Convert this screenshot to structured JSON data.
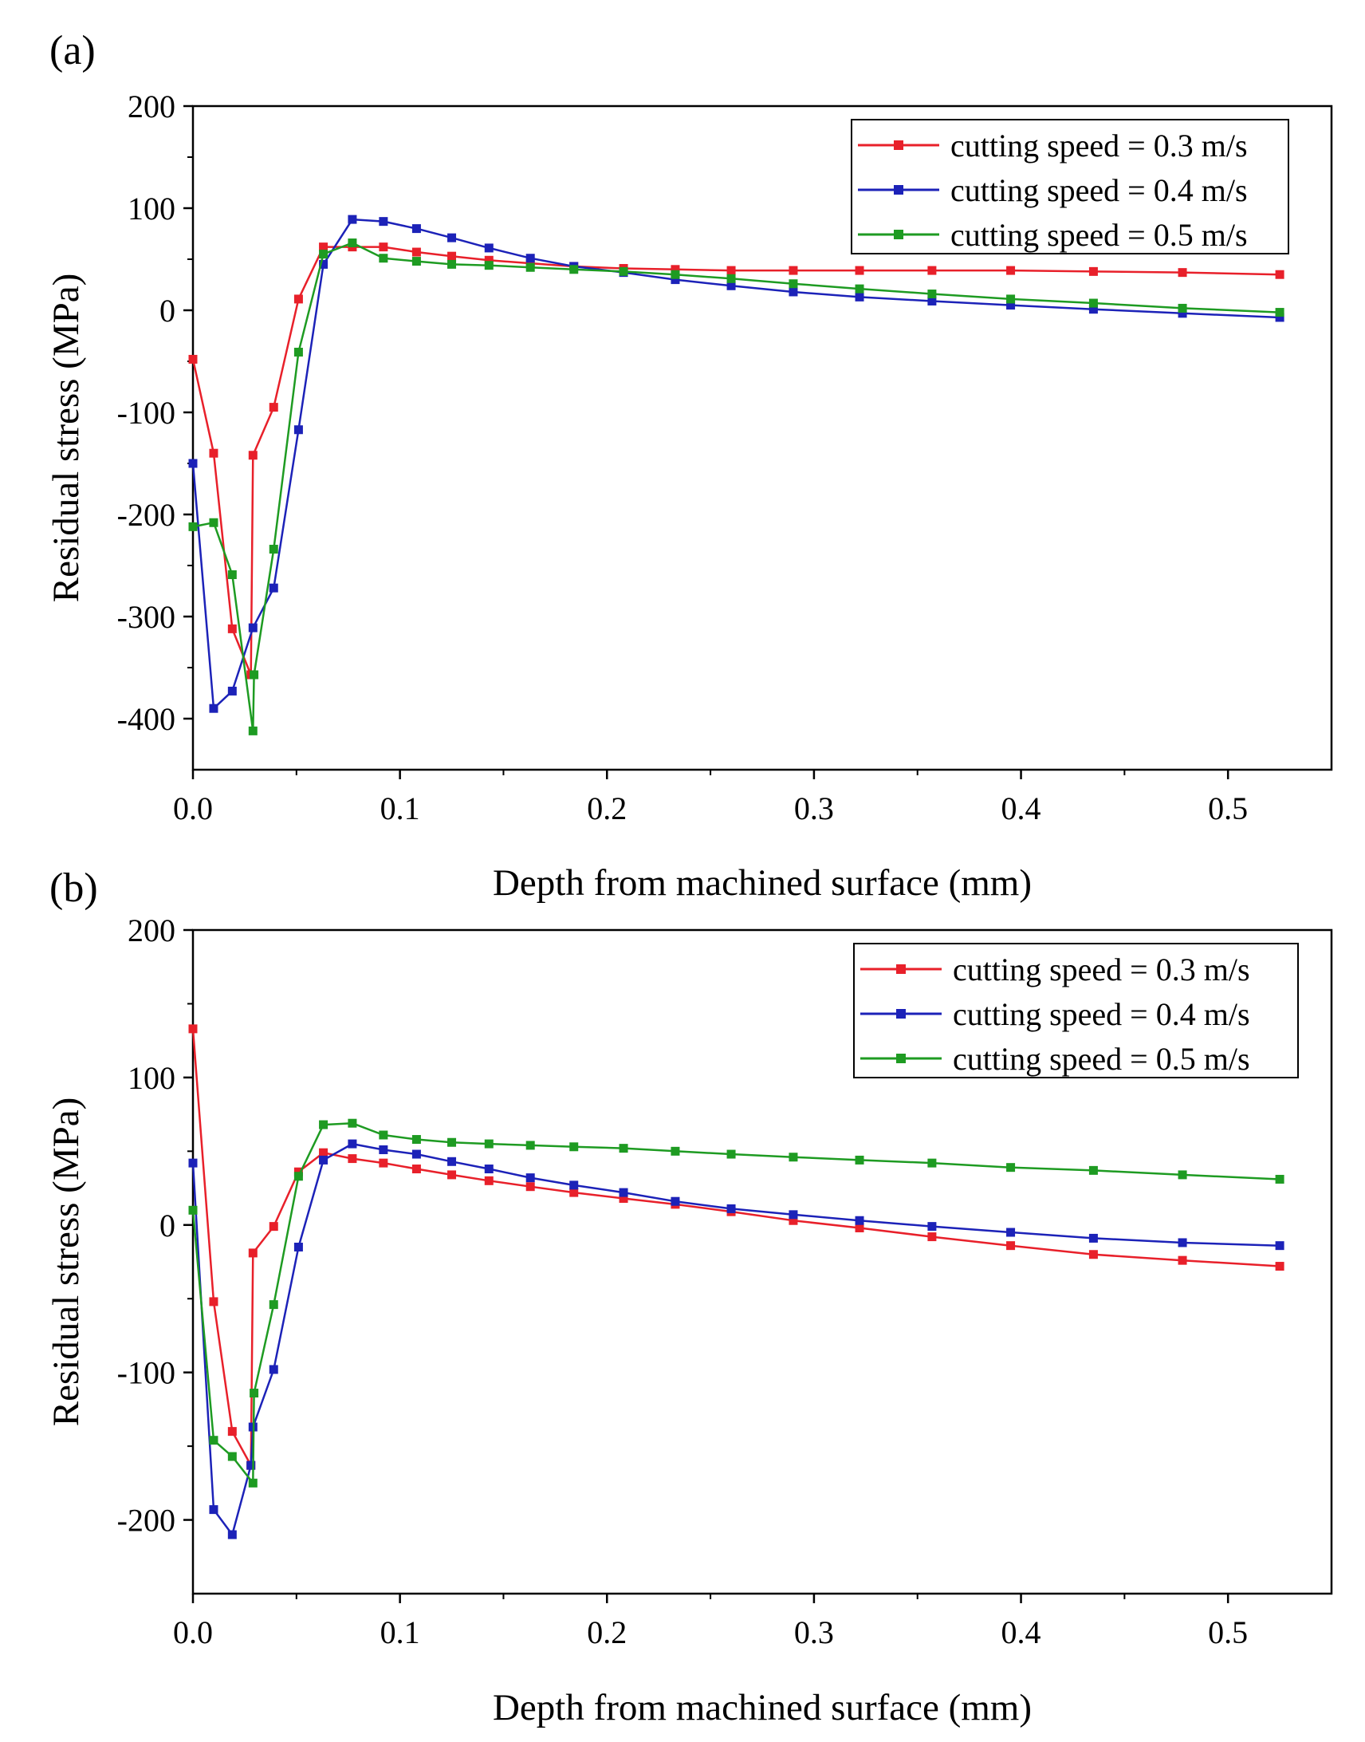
{
  "chart_data": [
    {
      "type": "line",
      "panel_label": "(a)",
      "xlabel": "Depth from machined surface (mm)",
      "ylabel": "Residual stress (MPa)",
      "xlim": [
        0,
        0.55
      ],
      "ylim": [
        -450,
        200
      ],
      "xticks": [
        0,
        0.1,
        0.2,
        0.3,
        0.4,
        0.5
      ],
      "xtick_labels": [
        "0.0",
        "0.1",
        "0.2",
        "0.3",
        "0.4",
        "0.5"
      ],
      "yticks": [
        -400,
        -300,
        -200,
        -100,
        0,
        100,
        200
      ],
      "ytick_labels": [
        "-400",
        "-300",
        "-200",
        "-100",
        "0",
        "100",
        "200"
      ],
      "legend_position": "top-right",
      "series": [
        {
          "name": "cutting speed = 0.3 m/s",
          "color": "#e8202a",
          "points": [
            [
              0,
              -48
            ],
            [
              0.01,
              -140
            ],
            [
              0.019,
              -312
            ],
            [
              0.028,
              -357
            ],
            [
              0.029,
              -142
            ],
            [
              0.039,
              -95
            ],
            [
              0.051,
              11
            ],
            [
              0.063,
              62
            ],
            [
              0.077,
              62
            ],
            [
              0.092,
              62
            ],
            [
              0.108,
              57
            ],
            [
              0.125,
              53
            ],
            [
              0.143,
              49
            ],
            [
              0.163,
              46
            ],
            [
              0.184,
              43
            ],
            [
              0.208,
              41
            ],
            [
              0.233,
              40
            ],
            [
              0.26,
              39
            ],
            [
              0.29,
              39
            ],
            [
              0.322,
              39
            ],
            [
              0.357,
              39
            ],
            [
              0.395,
              39
            ],
            [
              0.435,
              38
            ],
            [
              0.478,
              37
            ],
            [
              0.525,
              35
            ]
          ]
        },
        {
          "name": "cutting speed = 0.4 m/s",
          "color": "#1c22b8",
          "points": [
            [
              0,
              -150
            ],
            [
              0.01,
              -390
            ],
            [
              0.019,
              -373
            ],
            [
              0.029,
              -311
            ],
            [
              0.039,
              -272
            ],
            [
              0.051,
              -117
            ],
            [
              0.063,
              45
            ],
            [
              0.077,
              89
            ],
            [
              0.092,
              87
            ],
            [
              0.108,
              80
            ],
            [
              0.125,
              71
            ],
            [
              0.143,
              61
            ],
            [
              0.163,
              51
            ],
            [
              0.184,
              43
            ],
            [
              0.208,
              37
            ],
            [
              0.233,
              30
            ],
            [
              0.26,
              24
            ],
            [
              0.29,
              18
            ],
            [
              0.322,
              13
            ],
            [
              0.357,
              9
            ],
            [
              0.395,
              5
            ],
            [
              0.435,
              1
            ],
            [
              0.478,
              -3
            ],
            [
              0.525,
              -7
            ]
          ]
        },
        {
          "name": "cutting speed = 0.5 m/s",
          "color": "#1e9b22",
          "points": [
            [
              0,
              -212
            ],
            [
              0.01,
              -208
            ],
            [
              0.019,
              -259
            ],
            [
              0.029,
              -412
            ],
            [
              0.0295,
              -357
            ],
            [
              0.039,
              -234
            ],
            [
              0.051,
              -41
            ],
            [
              0.063,
              55
            ],
            [
              0.077,
              66
            ],
            [
              0.092,
              51
            ],
            [
              0.108,
              48
            ],
            [
              0.125,
              45
            ],
            [
              0.143,
              44
            ],
            [
              0.163,
              42
            ],
            [
              0.184,
              40
            ],
            [
              0.208,
              38
            ],
            [
              0.233,
              35
            ],
            [
              0.26,
              31
            ],
            [
              0.29,
              26
            ],
            [
              0.322,
              21
            ],
            [
              0.357,
              16
            ],
            [
              0.395,
              11
            ],
            [
              0.435,
              7
            ],
            [
              0.478,
              2
            ],
            [
              0.525,
              -2
            ]
          ]
        }
      ]
    },
    {
      "type": "line",
      "panel_label": "(b)",
      "xlabel": "Depth from machined surface (mm)",
      "ylabel": "Residual stress (MPa)",
      "xlim": [
        0,
        0.55
      ],
      "ylim": [
        -250,
        200
      ],
      "xticks": [
        0,
        0.1,
        0.2,
        0.3,
        0.4,
        0.5
      ],
      "xtick_labels": [
        "0.0",
        "0.1",
        "0.2",
        "0.3",
        "0.4",
        "0.5"
      ],
      "yticks": [
        -200,
        -100,
        0,
        100,
        200
      ],
      "ytick_labels": [
        "-200",
        "-100",
        "0",
        "100",
        "200"
      ],
      "legend_position": "top-right",
      "series": [
        {
          "name": "cutting speed = 0.3 m/s",
          "color": "#e8202a",
          "points": [
            [
              0,
              133
            ],
            [
              0.01,
              -52
            ],
            [
              0.019,
              -140
            ],
            [
              0.028,
              -163
            ],
            [
              0.029,
              -19
            ],
            [
              0.039,
              -1
            ],
            [
              0.051,
              36
            ],
            [
              0.063,
              49
            ],
            [
              0.077,
              45
            ],
            [
              0.092,
              42
            ],
            [
              0.108,
              38
            ],
            [
              0.125,
              34
            ],
            [
              0.143,
              30
            ],
            [
              0.163,
              26
            ],
            [
              0.184,
              22
            ],
            [
              0.208,
              18
            ],
            [
              0.233,
              14
            ],
            [
              0.26,
              9
            ],
            [
              0.29,
              3
            ],
            [
              0.322,
              -2
            ],
            [
              0.357,
              -8
            ],
            [
              0.395,
              -14
            ],
            [
              0.435,
              -20
            ],
            [
              0.478,
              -24
            ],
            [
              0.525,
              -28
            ]
          ]
        },
        {
          "name": "cutting speed = 0.4 m/s",
          "color": "#1c22b8",
          "points": [
            [
              0,
              42
            ],
            [
              0.01,
              -193
            ],
            [
              0.019,
              -210
            ],
            [
              0.028,
              -163
            ],
            [
              0.029,
              -137
            ],
            [
              0.039,
              -98
            ],
            [
              0.051,
              -15
            ],
            [
              0.063,
              44
            ],
            [
              0.077,
              55
            ],
            [
              0.092,
              51
            ],
            [
              0.108,
              48
            ],
            [
              0.125,
              43
            ],
            [
              0.143,
              38
            ],
            [
              0.163,
              32
            ],
            [
              0.184,
              27
            ],
            [
              0.208,
              22
            ],
            [
              0.233,
              16
            ],
            [
              0.26,
              11
            ],
            [
              0.29,
              7
            ],
            [
              0.322,
              3
            ],
            [
              0.357,
              -1
            ],
            [
              0.395,
              -5
            ],
            [
              0.435,
              -9
            ],
            [
              0.478,
              -12
            ],
            [
              0.525,
              -14
            ]
          ]
        },
        {
          "name": "cutting speed = 0.5 m/s",
          "color": "#1e9b22",
          "points": [
            [
              0,
              10
            ],
            [
              0.01,
              -146
            ],
            [
              0.019,
              -157
            ],
            [
              0.029,
              -175
            ],
            [
              0.0295,
              -114
            ],
            [
              0.039,
              -54
            ],
            [
              0.051,
              33
            ],
            [
              0.063,
              68
            ],
            [
              0.077,
              69
            ],
            [
              0.092,
              61
            ],
            [
              0.108,
              58
            ],
            [
              0.125,
              56
            ],
            [
              0.143,
              55
            ],
            [
              0.163,
              54
            ],
            [
              0.184,
              53
            ],
            [
              0.208,
              52
            ],
            [
              0.233,
              50
            ],
            [
              0.26,
              48
            ],
            [
              0.29,
              46
            ],
            [
              0.322,
              44
            ],
            [
              0.357,
              42
            ],
            [
              0.395,
              39
            ],
            [
              0.435,
              37
            ],
            [
              0.478,
              34
            ],
            [
              0.525,
              31
            ]
          ]
        }
      ]
    }
  ]
}
